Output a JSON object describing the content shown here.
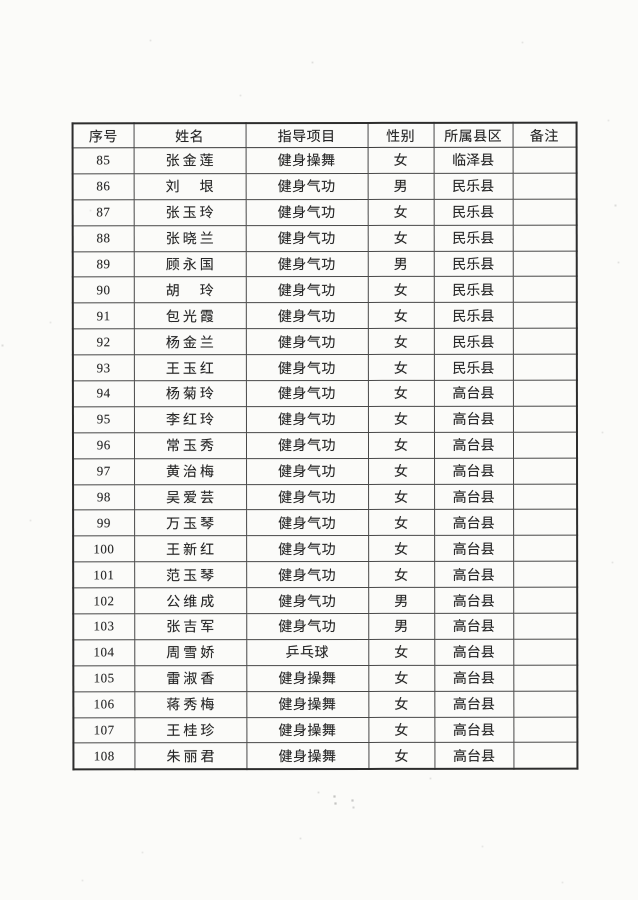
{
  "page": {
    "kind": "scanned-roster-table",
    "paper_color": "#fbfbf9",
    "ink_color": "#272727",
    "line_color": "#484848"
  },
  "table": {
    "headers": [
      "序号",
      "姓名",
      "指导项目",
      "性别",
      "所属县区",
      "备注"
    ],
    "rows": [
      [
        "85",
        "张金莲",
        "健身操舞",
        "女",
        "临泽县",
        ""
      ],
      [
        "86",
        "刘　垠",
        "健身气功",
        "男",
        "民乐县",
        ""
      ],
      [
        "87",
        "张玉玲",
        "健身气功",
        "女",
        "民乐县",
        ""
      ],
      [
        "88",
        "张晓兰",
        "健身气功",
        "女",
        "民乐县",
        ""
      ],
      [
        "89",
        "顾永国",
        "健身气功",
        "男",
        "民乐县",
        ""
      ],
      [
        "90",
        "胡　玲",
        "健身气功",
        "女",
        "民乐县",
        ""
      ],
      [
        "91",
        "包光霞",
        "健身气功",
        "女",
        "民乐县",
        ""
      ],
      [
        "92",
        "杨金兰",
        "健身气功",
        "女",
        "民乐县",
        ""
      ],
      [
        "93",
        "王玉红",
        "健身气功",
        "女",
        "民乐县",
        ""
      ],
      [
        "94",
        "杨菊玲",
        "健身气功",
        "女",
        "高台县",
        ""
      ],
      [
        "95",
        "李红玲",
        "健身气功",
        "女",
        "高台县",
        ""
      ],
      [
        "96",
        "常玉秀",
        "健身气功",
        "女",
        "高台县",
        ""
      ],
      [
        "97",
        "黄治梅",
        "健身气功",
        "女",
        "高台县",
        ""
      ],
      [
        "98",
        "吴爱芸",
        "健身气功",
        "女",
        "高台县",
        ""
      ],
      [
        "99",
        "万玉琴",
        "健身气功",
        "女",
        "高台县",
        ""
      ],
      [
        "100",
        "王新红",
        "健身气功",
        "女",
        "高台县",
        ""
      ],
      [
        "101",
        "范玉琴",
        "健身气功",
        "女",
        "高台县",
        ""
      ],
      [
        "102",
        "公维成",
        "健身气功",
        "男",
        "高台县",
        ""
      ],
      [
        "103",
        "张吉军",
        "健身气功",
        "男",
        "高台县",
        ""
      ],
      [
        "104",
        "周雪娇",
        "乒乓球",
        "女",
        "高台县",
        ""
      ],
      [
        "105",
        "雷淑香",
        "健身操舞",
        "女",
        "高台县",
        ""
      ],
      [
        "106",
        "蒋秀梅",
        "健身操舞",
        "女",
        "高台县",
        ""
      ],
      [
        "107",
        "王桂珍",
        "健身操舞",
        "女",
        "高台县",
        ""
      ],
      [
        "108",
        "朱丽君",
        "健身操舞",
        "女",
        "高台县",
        ""
      ]
    ]
  }
}
